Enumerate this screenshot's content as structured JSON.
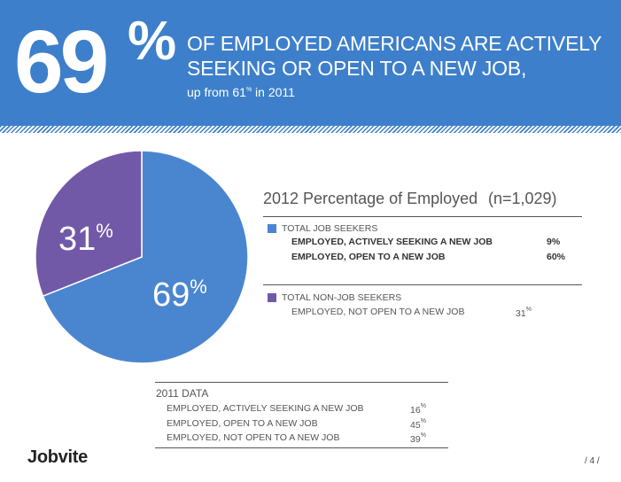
{
  "header": {
    "big_number": "69",
    "big_sign": "%",
    "line1": "OF EMPLOYED AMERICANS ARE ACTIVELY",
    "line2": "SEEKING OR OPEN TO A NEW JOB,",
    "sub_prefix": "up from 61",
    "sub_sup": "%",
    "sub_suffix": " in 2011"
  },
  "colors": {
    "header_blue": "#3d7fcb",
    "job_seekers": "#4a86cf",
    "non_seekers": "#7159a8"
  },
  "chart_data": {
    "type": "pie",
    "title": "2012 Percentage of Employed",
    "note": "(n=1,029)",
    "slices": [
      {
        "label": "69",
        "value": 69,
        "color": "#4a86cf"
      },
      {
        "label": "31",
        "value": 31,
        "color": "#7159a8"
      }
    ],
    "pct_sign": "%"
  },
  "legend": {
    "seekers": {
      "title": "TOTAL JOB SEEKERS",
      "rows": [
        {
          "label": "EMPLOYED, ACTIVELY SEEKING A NEW JOB",
          "value": "9%"
        },
        {
          "label": "EMPLOYED, OPEN TO A NEW JOB",
          "value": "60%"
        }
      ]
    },
    "non_seekers": {
      "title": "TOTAL NON-JOB SEEKERS",
      "rows": [
        {
          "label": "EMPLOYED, NOT OPEN TO A NEW JOB",
          "value": "31",
          "sup": "%"
        }
      ]
    }
  },
  "data_2011": {
    "title": "2011 DATA",
    "rows": [
      {
        "label": "EMPLOYED, ACTIVELY SEEKING A NEW JOB",
        "value": "16",
        "sup": "%"
      },
      {
        "label": "EMPLOYED, OPEN TO A NEW JOB",
        "value": "45",
        "sup": "%"
      },
      {
        "label": "EMPLOYED, NOT OPEN TO A NEW JOB",
        "value": "39",
        "sup": "%"
      }
    ]
  },
  "footer": {
    "logo": "Jobvite",
    "page": "/ 4 /"
  }
}
